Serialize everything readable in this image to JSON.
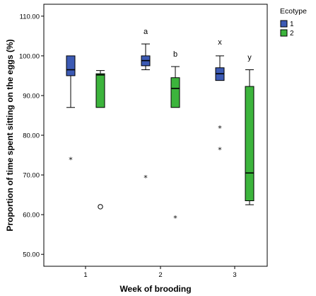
{
  "chart_data": {
    "type": "boxplot",
    "xlabel": "Week of brooding",
    "ylabel": "Proportion of time spent sitting on the eggs (%)",
    "categories": [
      "1",
      "2",
      "3"
    ],
    "ylim": [
      47,
      113
    ],
    "y_ticks": [
      "50.00",
      "60.00",
      "70.00",
      "80.00",
      "90.00",
      "100.00",
      "110.00"
    ],
    "y_tick_values": [
      50,
      60,
      70,
      80,
      90,
      100,
      110
    ],
    "legend": {
      "title": "Ecotype",
      "placement": "top-right",
      "items": [
        {
          "label": "1",
          "color": "#3c5ab4"
        },
        {
          "label": "2",
          "color": "#3cb43c"
        }
      ]
    },
    "series": [
      {
        "name": "1",
        "color": "#3c5ab4",
        "boxes": [
          {
            "category": "1",
            "whisker_low": 87.0,
            "q1": 95.0,
            "median": 96.5,
            "q3": 100.0,
            "whisker_high": 100.0
          },
          {
            "category": "2",
            "whisker_low": 96.5,
            "q1": 97.5,
            "median": 98.8,
            "q3": 100.0,
            "whisker_high": 103.0
          },
          {
            "category": "3",
            "whisker_low": 93.8,
            "q1": 93.8,
            "median": 95.5,
            "q3": 97.0,
            "whisker_high": 100.0
          }
        ],
        "outliers": [
          {
            "category": "1",
            "value": 74.0,
            "marker": "star"
          },
          {
            "category": "2",
            "value": 69.5,
            "marker": "star"
          },
          {
            "category": "3",
            "value": 82.0,
            "marker": "star"
          },
          {
            "category": "3",
            "value": 76.5,
            "marker": "star"
          }
        ]
      },
      {
        "name": "2",
        "color": "#3cb43c",
        "boxes": [
          {
            "category": "1",
            "whisker_low": 87.0,
            "q1": 87.0,
            "median": 95.2,
            "q3": 95.5,
            "whisker_high": 96.3
          },
          {
            "category": "2",
            "whisker_low": 87.0,
            "q1": 87.0,
            "median": 91.8,
            "q3": 94.5,
            "whisker_high": 97.3
          },
          {
            "category": "3",
            "whisker_low": 62.5,
            "q1": 63.5,
            "median": 70.5,
            "q3": 92.3,
            "whisker_high": 96.5
          }
        ],
        "outliers": [
          {
            "category": "1",
            "value": 62.0,
            "marker": "circle"
          },
          {
            "category": "2",
            "value": 59.3,
            "marker": "star"
          }
        ]
      }
    ],
    "letters": [
      {
        "category": "2",
        "series": "1",
        "text": "a",
        "value": 105.5
      },
      {
        "category": "2",
        "series": "2",
        "text": "b",
        "value": 99.8
      },
      {
        "category": "3",
        "series": "1",
        "text": "x",
        "value": 102.8
      },
      {
        "category": "3",
        "series": "2",
        "text": "y",
        "value": 99.0
      }
    ]
  }
}
